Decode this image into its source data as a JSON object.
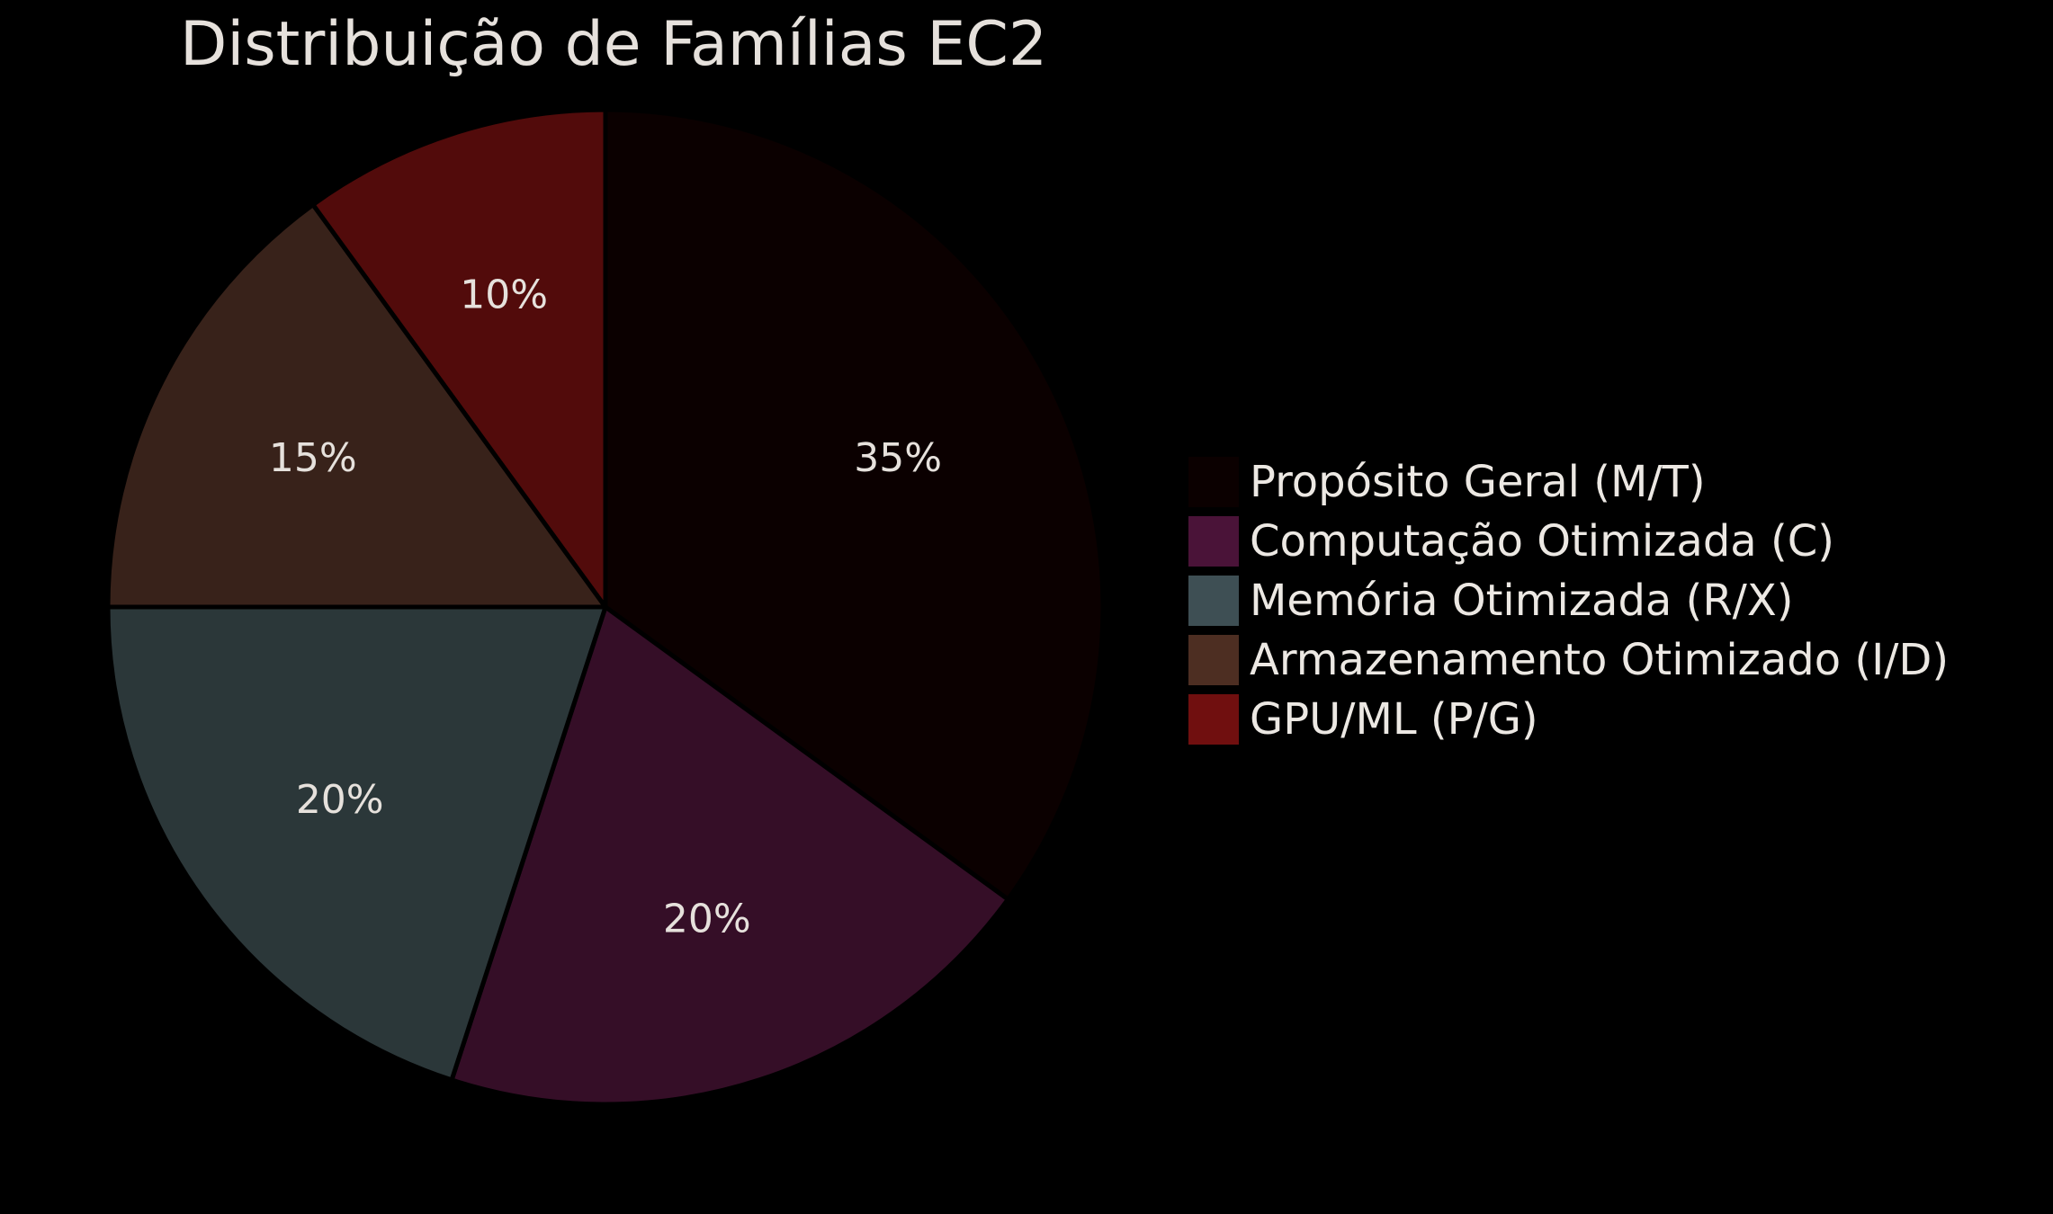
{
  "chart_data": {
    "type": "pie",
    "title": "Distribuição de Famílias EC2",
    "categories": [
      "Propósito Geral (M/T)",
      "Computação Otimizada (C)",
      "Memória Otimizada (R/X)",
      "Armazenamento Otimizado (I/D)",
      "GPU/ML (P/G)"
    ],
    "values": [
      35,
      20,
      20,
      15,
      10
    ],
    "value_labels": [
      "35%",
      "20%",
      "20%",
      "15%",
      "10%"
    ],
    "colors": [
      "#0b0000",
      "#350e27",
      "#2b3739",
      "#38221a",
      "#520b0b"
    ],
    "legend_colors": [
      "#0b0000",
      "#4a1338",
      "#3e4f54",
      "#4d2e22",
      "#700f0f"
    ],
    "start_angle": "12 o'clock",
    "direction": "clockwise",
    "legend_position": "right"
  }
}
